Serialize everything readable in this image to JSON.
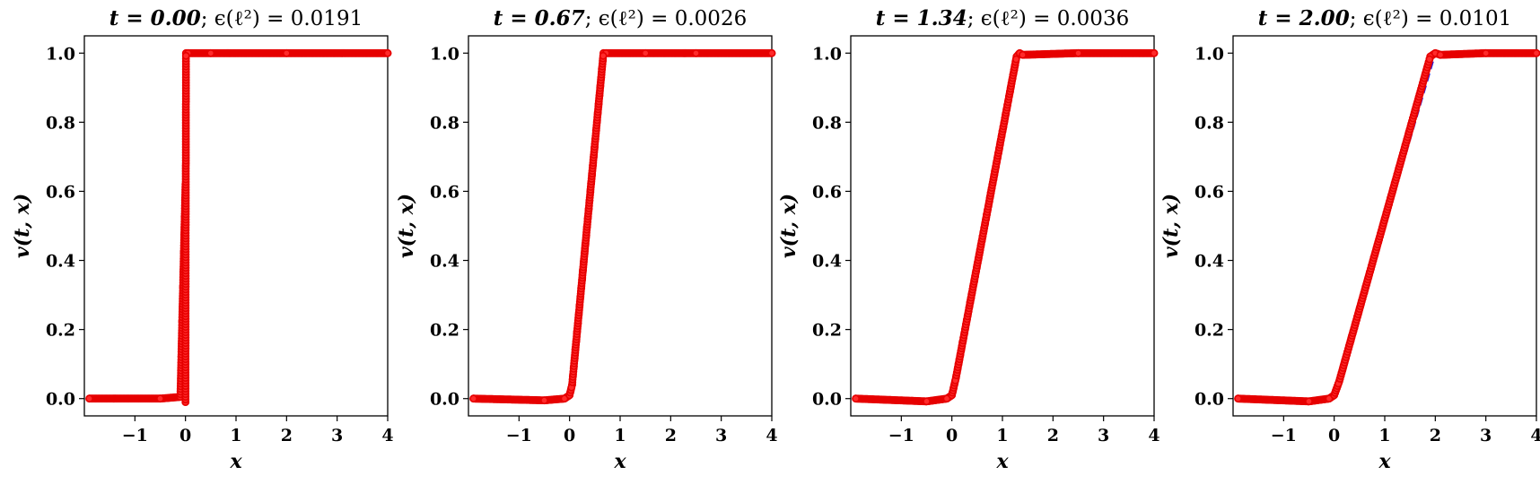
{
  "colors": {
    "exact": "#1f1fe6",
    "prediction": "#ff2a2a"
  },
  "chart_data": [
    {
      "type": "line",
      "title_time": "t = 0.00",
      "title_error_label": "; ϵ(ℓ²) = ",
      "title_error_value": "0.0191",
      "xlabel": "x",
      "ylabel": "v(t, x)",
      "xlim": [
        -2.0,
        4.0
      ],
      "ylim": [
        -0.05,
        1.05
      ],
      "xticks": [
        -1,
        0,
        1,
        2,
        3,
        4
      ],
      "xtick_labels": [
        "−1",
        "0",
        "1",
        "2",
        "3",
        "4"
      ],
      "yticks": [
        0.0,
        0.2,
        0.4,
        0.6,
        0.8,
        1.0
      ],
      "ytick_labels": [
        "0.0",
        "0.2",
        "0.4",
        "0.6",
        "0.8",
        "1.0"
      ],
      "series": [
        {
          "style": "dashed",
          "color": "#1f1fe6",
          "x": [
            -1.9,
            -0.0001,
            0.0,
            0.0001,
            4.0
          ],
          "y": [
            0.0,
            0.0,
            0.5,
            1.0,
            1.0
          ]
        },
        {
          "style": "markers",
          "color": "#ff2a2a",
          "x": [
            -1.9,
            -0.5,
            -0.1,
            0.0,
            0.0,
            0.01,
            0.05,
            0.5,
            2.0,
            4.0
          ],
          "y": [
            0.0,
            0.0,
            0.005,
            0.62,
            -0.01,
            1.0,
            1.0,
            1.0,
            1.0,
            1.0
          ]
        }
      ]
    },
    {
      "type": "line",
      "title_time": "t = 0.67",
      "title_error_label": "; ϵ(ℓ²) = ",
      "title_error_value": "0.0026",
      "xlabel": "x",
      "ylabel": "v(t, x)",
      "xlim": [
        -2.0,
        4.0
      ],
      "ylim": [
        -0.05,
        1.05
      ],
      "xticks": [
        -1,
        0,
        1,
        2,
        3,
        4
      ],
      "xtick_labels": [
        "−1",
        "0",
        "1",
        "2",
        "3",
        "4"
      ],
      "yticks": [
        0.0,
        0.2,
        0.4,
        0.6,
        0.8,
        1.0
      ],
      "ytick_labels": [
        "0.0",
        "0.2",
        "0.4",
        "0.6",
        "0.8",
        "1.0"
      ],
      "series": [
        {
          "style": "dashed",
          "color": "#1f1fe6",
          "x": [
            -1.9,
            0.0,
            0.67,
            4.0
          ],
          "y": [
            0.0,
            0.0,
            1.0,
            1.0
          ]
        },
        {
          "style": "markers",
          "color": "#ff2a2a",
          "x": [
            -1.9,
            -0.5,
            -0.1,
            0.0,
            0.05,
            0.67,
            0.72,
            1.5,
            2.5,
            4.0
          ],
          "y": [
            0.0,
            -0.005,
            0.0,
            0.01,
            0.04,
            1.0,
            1.0,
            1.0,
            1.0,
            1.0
          ]
        }
      ]
    },
    {
      "type": "line",
      "title_time": "t = 1.34",
      "title_error_label": "; ϵ(ℓ²) = ",
      "title_error_value": "0.0036",
      "xlabel": "x",
      "ylabel": "v(t, x)",
      "xlim": [
        -2.0,
        4.0
      ],
      "ylim": [
        -0.05,
        1.05
      ],
      "xticks": [
        -1,
        0,
        1,
        2,
        3,
        4
      ],
      "xtick_labels": [
        "−1",
        "0",
        "1",
        "2",
        "3",
        "4"
      ],
      "yticks": [
        0.0,
        0.2,
        0.4,
        0.6,
        0.8,
        1.0
      ],
      "ytick_labels": [
        "0.0",
        "0.2",
        "0.4",
        "0.6",
        "0.8",
        "1.0"
      ],
      "series": [
        {
          "style": "dashed",
          "color": "#1f1fe6",
          "x": [
            -1.9,
            0.0,
            1.34,
            4.0
          ],
          "y": [
            0.0,
            0.0,
            1.0,
            1.0
          ]
        },
        {
          "style": "markers",
          "color": "#ff2a2a",
          "x": [
            -1.9,
            -0.5,
            -0.1,
            0.0,
            0.08,
            1.28,
            1.34,
            1.4,
            2.5,
            4.0
          ],
          "y": [
            0.0,
            -0.008,
            0.0,
            0.01,
            0.06,
            0.99,
            1.0,
            0.995,
            1.0,
            1.0
          ]
        }
      ]
    },
    {
      "type": "line",
      "title_time": "t = 2.00",
      "title_error_label": "; ϵ(ℓ²) = ",
      "title_error_value": "0.0101",
      "xlabel": "x",
      "ylabel": "v(t, x)",
      "xlim": [
        -2.0,
        4.0
      ],
      "ylim": [
        -0.05,
        1.05
      ],
      "xticks": [
        -1,
        0,
        1,
        2,
        3,
        4
      ],
      "xtick_labels": [
        "−1",
        "0",
        "1",
        "2",
        "3",
        "4"
      ],
      "yticks": [
        0.0,
        0.2,
        0.4,
        0.6,
        0.8,
        1.0
      ],
      "ytick_labels": [
        "0.0",
        "0.2",
        "0.4",
        "0.6",
        "0.8",
        "1.0"
      ],
      "series": [
        {
          "style": "dashed",
          "color": "#1f1fe6",
          "x": [
            -1.9,
            0.0,
            2.0,
            4.0
          ],
          "y": [
            0.0,
            0.0,
            1.0,
            1.0
          ]
        },
        {
          "style": "markers",
          "color": "#ff2a2a",
          "x": [
            -1.9,
            -0.5,
            -0.1,
            0.0,
            0.1,
            1.9,
            2.0,
            2.1,
            3.0,
            4.0
          ],
          "y": [
            0.0,
            -0.008,
            0.0,
            0.01,
            0.05,
            0.99,
            1.0,
            0.995,
            1.0,
            1.0
          ]
        }
      ]
    }
  ]
}
